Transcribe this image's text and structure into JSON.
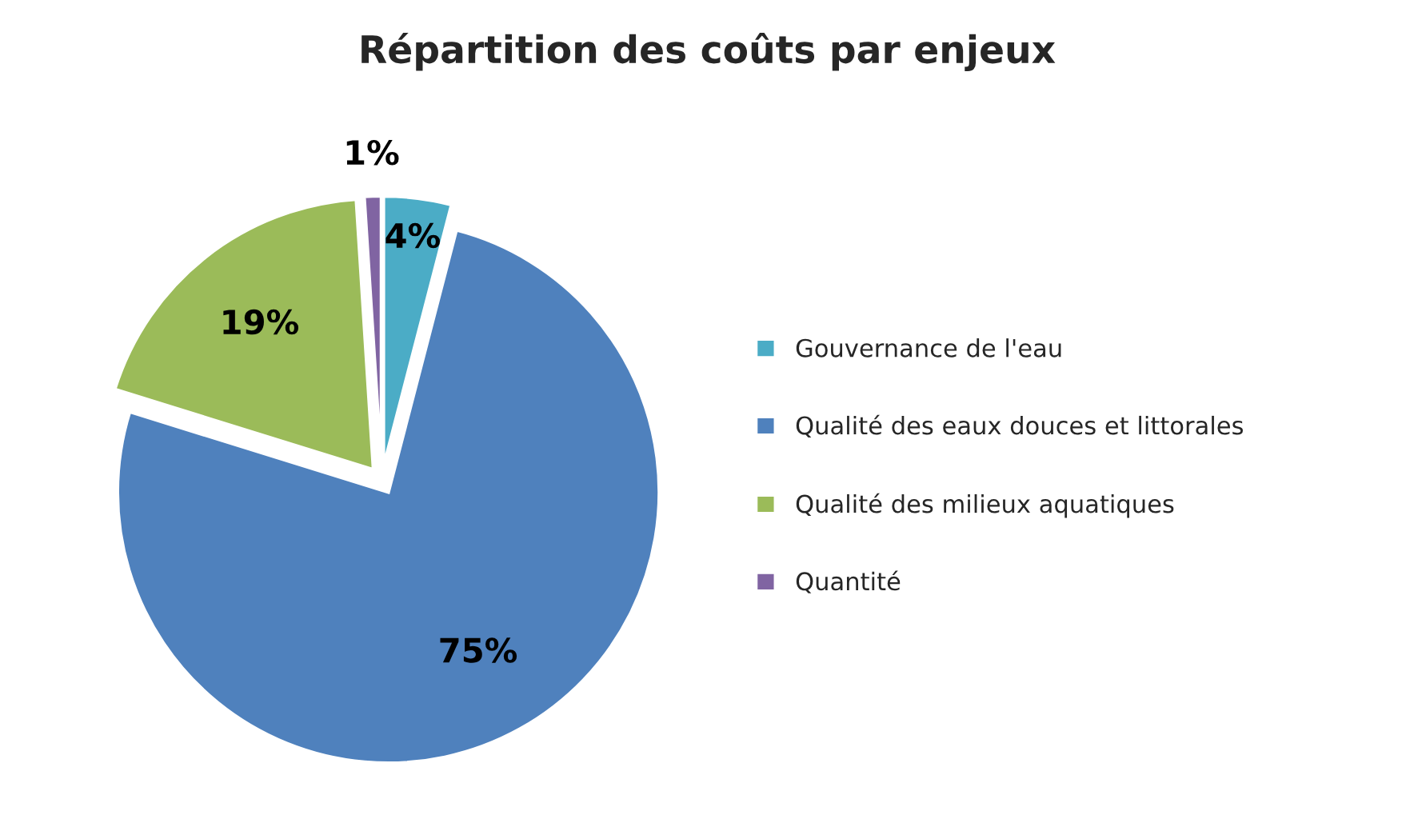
{
  "chart_data": {
    "type": "pie",
    "title": "Répartition des coûts par enjeux",
    "categories": [
      "Gouvernance de l'eau",
      "Qualité des eaux douces et littorales",
      "Qualité des milieux aquatiques",
      "Quantité"
    ],
    "values": [
      4,
      75,
      19,
      1
    ],
    "colors": [
      "#4bacc6",
      "#4f81bd",
      "#9bbb59",
      "#8064a2"
    ],
    "value_labels": [
      "4%",
      "75%",
      "19%",
      "1%"
    ],
    "legend": "right"
  }
}
